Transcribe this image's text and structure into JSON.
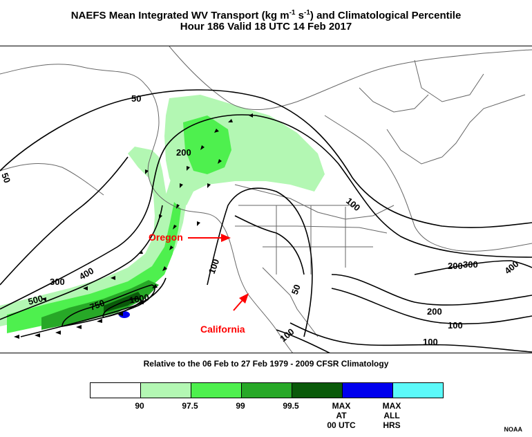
{
  "title_line1": "NAEFS Mean Integrated WV Transport (kg m",
  "title_sup1": "-1",
  "title_mid": " s",
  "title_sup2": "-1",
  "title_end": ") and Climatological Percentile",
  "title_line2": "Hour 186 Valid 18 UTC 14 Feb 2017",
  "subtitle": "Relative to the 06 Feb to 27 Feb 1979 - 2009 CFSR Climatology",
  "annotations": {
    "oregon": "Oregon",
    "california": "California"
  },
  "contour_labels": [
    "50",
    "50",
    "100",
    "100",
    "100",
    "100",
    "100",
    "200",
    "200",
    "200",
    "300",
    "300",
    "400",
    "400",
    "500",
    "750",
    "1000",
    "50"
  ],
  "legend": {
    "colors": [
      "#ffffff",
      "#b3f7b3",
      "#4ef04e",
      "#27a827",
      "#0a5a0a",
      "#0000ee",
      "#5cfafa"
    ],
    "labels": [
      "90",
      "97.5",
      "99",
      "99.5",
      "MAX\nAT\n00 UTC",
      "MAX\nALL\nHRS"
    ]
  },
  "credit": "NOAA"
}
